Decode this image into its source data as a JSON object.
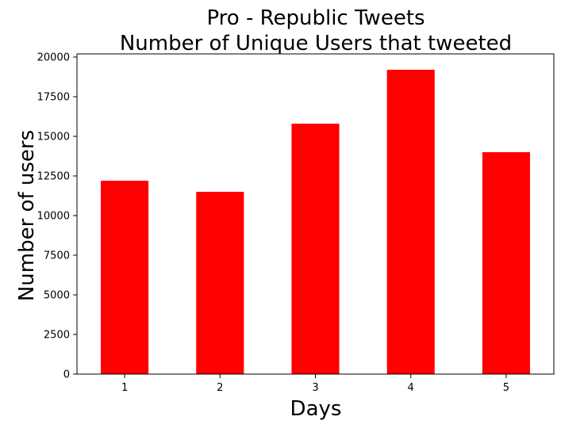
{
  "chart_data": {
    "type": "bar",
    "title": "Pro - Republic Tweets",
    "subtitle": "Number of Unique Users that tweeted",
    "xlabel": "Days",
    "ylabel": "Number of users",
    "categories": [
      "1",
      "2",
      "3",
      "4",
      "5"
    ],
    "values": [
      12200,
      11500,
      15800,
      19200,
      14000
    ],
    "ylim": [
      0,
      20200
    ],
    "yticks": [
      0,
      2500,
      5000,
      7500,
      10000,
      12500,
      15000,
      17500,
      20000
    ],
    "bar_color": "#ff0000",
    "grid": false,
    "legend": "none"
  }
}
